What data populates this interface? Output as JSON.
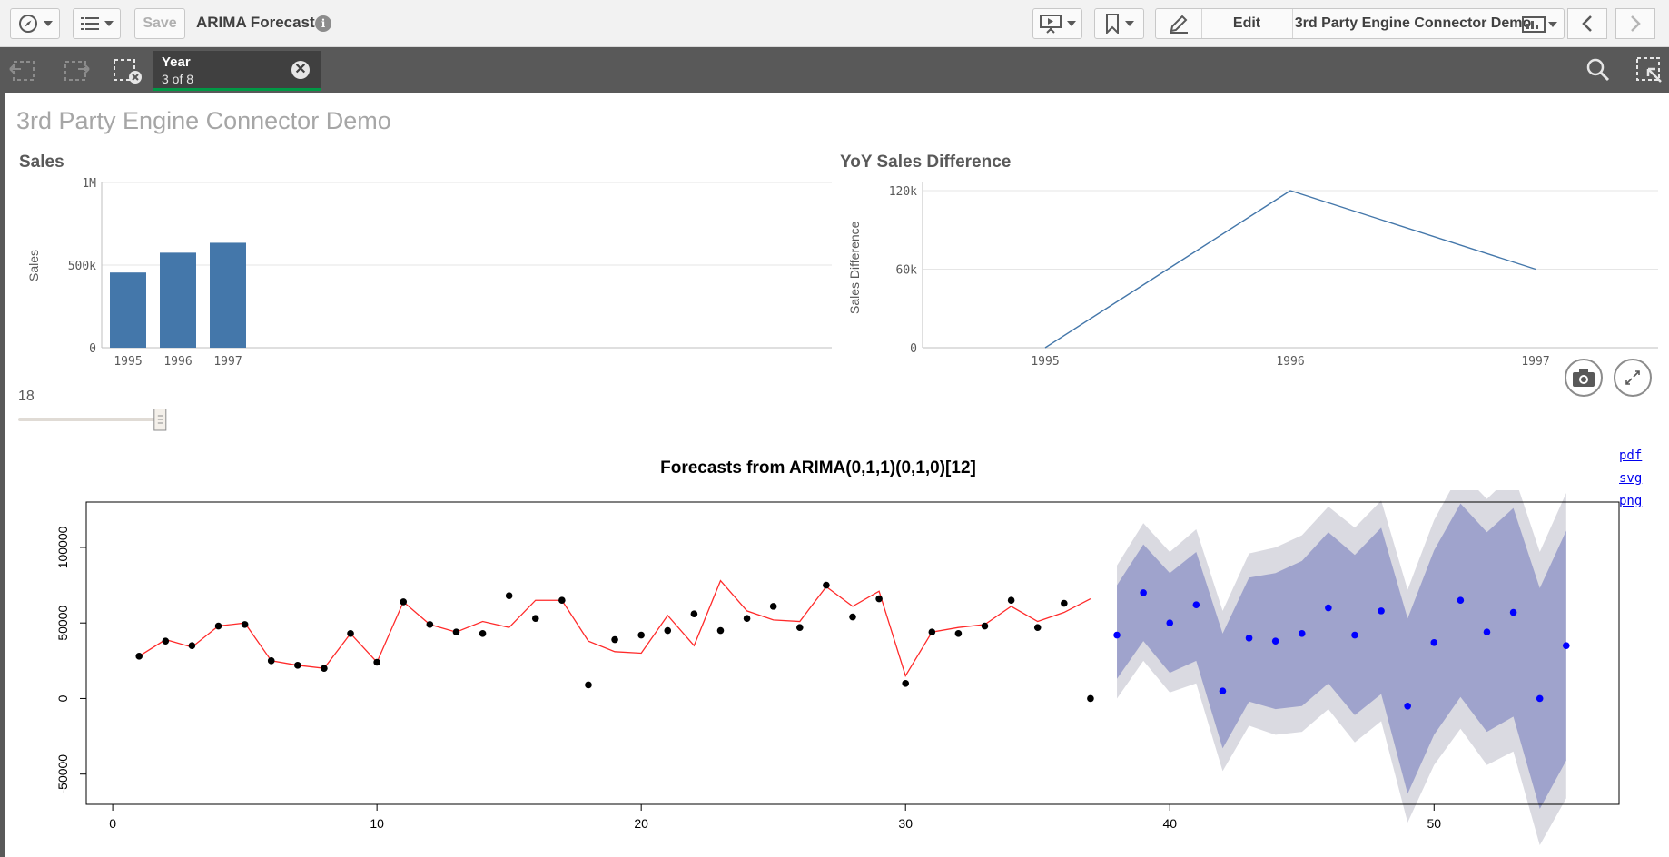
{
  "toolbar": {
    "save_label": "Save",
    "app_title": "ARIMA Forecast",
    "info_glyph": "i",
    "edit_label": "Edit",
    "sheet_name": "3rd Party Engine Connector Demo",
    "icons": [
      "compass-icon",
      "list-icon",
      "presentation-icon",
      "bookmark-icon",
      "pencil-icon",
      "sheet-icon",
      "chevron-left-icon",
      "chevron-right-icon"
    ]
  },
  "selections": {
    "field_name": "Year",
    "field_count": "3 of 8",
    "clear_glyph": "✕",
    "icons": [
      "step-back-icon",
      "step-forward-icon",
      "clear-selections-icon",
      "search-icon",
      "selection-tool-icon"
    ]
  },
  "sheet": {
    "title": "3rd Party Engine Connector Demo"
  },
  "sales_chart": {
    "title": "Sales",
    "chart_data": {
      "type": "bar",
      "categories": [
        "1995",
        "1996",
        "1997"
      ],
      "values": [
        455000,
        575000,
        635000
      ],
      "ylabel": "Sales",
      "yticks": [
        "1M",
        "500k",
        "0"
      ],
      "ylim": [
        0,
        1000000
      ],
      "color": "#4477aa"
    }
  },
  "yoy_chart": {
    "title": "YoY Sales Difference",
    "chart_data": {
      "type": "line",
      "categories": [
        "1995",
        "1996",
        "1997"
      ],
      "values": [
        0,
        120000,
        60000
      ],
      "ylabel": "Sales Difference",
      "yticks": [
        "120k",
        "60k",
        "0"
      ],
      "ylim": [
        0,
        120000
      ],
      "color": "#4477aa"
    }
  },
  "slider": {
    "value": "18",
    "position": 0.98
  },
  "downloads": {
    "pdf": "pdf",
    "svg": "svg",
    "png": "png"
  },
  "forecast_plot": {
    "title": "Forecasts from ARIMA(0,1,1)(0,1,0)[12]",
    "chart_data": {
      "type": "line",
      "xticks": [
        "0",
        "10",
        "20",
        "30",
        "40",
        "50"
      ],
      "yticks": [
        "-50000",
        "0",
        "50000",
        "100000"
      ],
      "xlim": [
        -1,
        57
      ],
      "ylim": [
        -70000,
        130000
      ],
      "actual": [
        [
          1,
          28000
        ],
        [
          2,
          38000
        ],
        [
          3,
          35000
        ],
        [
          4,
          48000
        ],
        [
          5,
          49000
        ],
        [
          6,
          25000
        ],
        [
          7,
          22000
        ],
        [
          8,
          20000
        ],
        [
          9,
          43000
        ],
        [
          10,
          24000
        ],
        [
          11,
          64000
        ],
        [
          12,
          49000
        ],
        [
          13,
          44000
        ],
        [
          14,
          43000
        ],
        [
          15,
          68000
        ],
        [
          16,
          53000
        ],
        [
          17,
          65000
        ],
        [
          18,
          9000
        ],
        [
          19,
          39000
        ],
        [
          20,
          42000
        ],
        [
          21,
          45000
        ],
        [
          22,
          56000
        ],
        [
          23,
          45000
        ],
        [
          24,
          53000
        ],
        [
          25,
          61000
        ],
        [
          26,
          47000
        ],
        [
          27,
          75000
        ],
        [
          28,
          54000
        ],
        [
          29,
          66000
        ],
        [
          30,
          10000
        ],
        [
          31,
          44000
        ],
        [
          32,
          43000
        ],
        [
          33,
          48000
        ],
        [
          34,
          65000
        ],
        [
          35,
          47000
        ],
        [
          36,
          63000
        ],
        [
          37,
          0
        ]
      ],
      "fitted": [
        [
          1,
          28000
        ],
        [
          2,
          39000
        ],
        [
          3,
          34000
        ],
        [
          4,
          48000
        ],
        [
          5,
          50000
        ],
        [
          6,
          25000
        ],
        [
          7,
          22000
        ],
        [
          8,
          20000
        ],
        [
          9,
          43000
        ],
        [
          10,
          24000
        ],
        [
          11,
          64000
        ],
        [
          12,
          49000
        ],
        [
          13,
          44000
        ],
        [
          14,
          51000
        ],
        [
          15,
          47000
        ],
        [
          16,
          65000
        ],
        [
          17,
          65000
        ],
        [
          18,
          38000
        ],
        [
          19,
          31000
        ],
        [
          20,
          30000
        ],
        [
          21,
          55000
        ],
        [
          22,
          35000
        ],
        [
          23,
          78000
        ],
        [
          24,
          58000
        ],
        [
          25,
          52000
        ],
        [
          26,
          51000
        ],
        [
          27,
          74000
        ],
        [
          28,
          61000
        ],
        [
          29,
          71000
        ],
        [
          30,
          15000
        ],
        [
          31,
          44000
        ],
        [
          32,
          47000
        ],
        [
          33,
          49000
        ],
        [
          34,
          61000
        ],
        [
          35,
          51000
        ],
        [
          36,
          57000
        ],
        [
          37,
          66000
        ]
      ],
      "forecast": [
        [
          38,
          42000
        ],
        [
          39,
          70000
        ],
        [
          40,
          50000
        ],
        [
          41,
          62000
        ],
        [
          42,
          5000
        ],
        [
          43,
          40000
        ],
        [
          44,
          38000
        ],
        [
          45,
          43000
        ],
        [
          46,
          60000
        ],
        [
          47,
          42000
        ],
        [
          48,
          58000
        ],
        [
          49,
          -5000
        ],
        [
          50,
          37000
        ],
        [
          51,
          65000
        ],
        [
          52,
          44000
        ],
        [
          53,
          57000
        ],
        [
          54,
          0
        ],
        [
          55,
          35000
        ]
      ],
      "band80": [
        [
          38,
          13000,
          75000
        ],
        [
          39,
          38000,
          102000
        ],
        [
          40,
          17000,
          83000
        ],
        [
          41,
          25000,
          97000
        ],
        [
          42,
          -33000,
          43000
        ],
        [
          43,
          -2000,
          80000
        ],
        [
          44,
          -7000,
          83000
        ],
        [
          45,
          -5000,
          91000
        ],
        [
          46,
          10000,
          110000
        ],
        [
          47,
          -11000,
          95000
        ],
        [
          48,
          3000,
          113000
        ],
        [
          49,
          -63000,
          53000
        ],
        [
          50,
          -24000,
          98000
        ],
        [
          51,
          1000,
          129000
        ],
        [
          52,
          -22000,
          110000
        ],
        [
          53,
          -12000,
          126000
        ],
        [
          54,
          -73000,
          73000
        ],
        [
          55,
          -41000,
          111000
        ]
      ],
      "band95": [
        [
          38,
          0,
          88000
        ],
        [
          39,
          25000,
          116000
        ],
        [
          40,
          4000,
          97000
        ],
        [
          41,
          10000,
          112000
        ],
        [
          42,
          -48000,
          58000
        ],
        [
          43,
          -18000,
          96000
        ],
        [
          44,
          -24000,
          100000
        ],
        [
          45,
          -22000,
          108000
        ],
        [
          46,
          -7000,
          127000
        ],
        [
          47,
          -29000,
          113000
        ],
        [
          48,
          -15000,
          131000
        ],
        [
          49,
          -82000,
          72000
        ],
        [
          50,
          -44000,
          118000
        ],
        [
          51,
          -20000,
          150000
        ],
        [
          52,
          -44000,
          132000
        ],
        [
          53,
          -35000,
          149000
        ],
        [
          54,
          -97000,
          97000
        ],
        [
          55,
          -66000,
          136000
        ]
      ],
      "colors": {
        "actual": "#000000",
        "fitted": "#ff2a2a",
        "forecast": "#0000ff",
        "band80": "#9fa3cc",
        "band95": "#dadae1"
      }
    }
  }
}
